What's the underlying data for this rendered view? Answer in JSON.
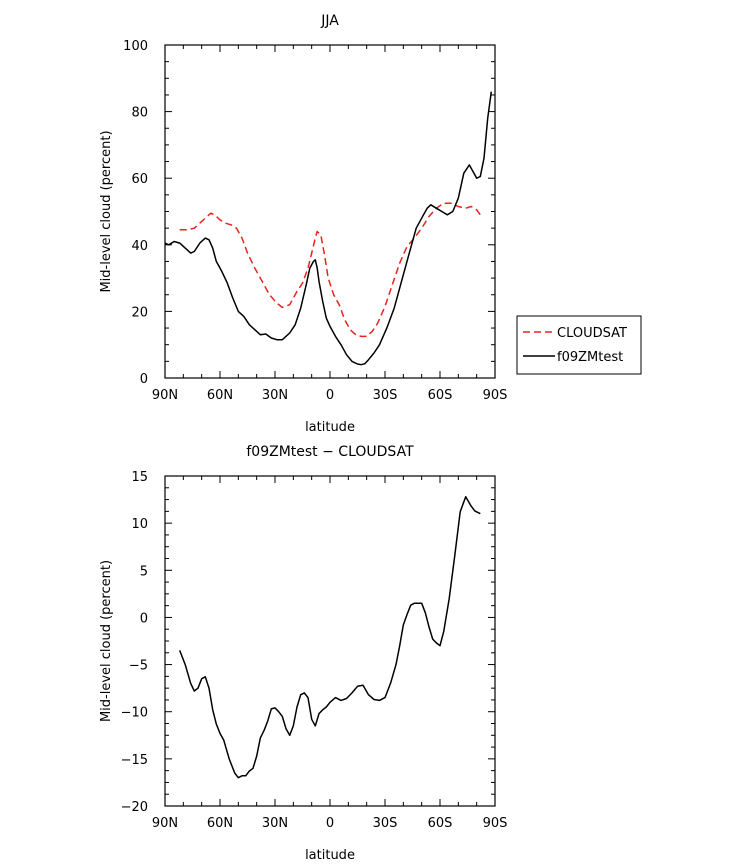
{
  "chart_data": [
    {
      "type": "line",
      "title": "JJA",
      "xlabel": "latitude",
      "ylabel": "Mid-level cloud (percent)",
      "xlim": [
        -90,
        90
      ],
      "ylim": [
        0,
        100
      ],
      "x_ticks": [
        -90,
        -60,
        -30,
        0,
        30,
        60,
        90
      ],
      "x_tick_labels": [
        "90N",
        "60N",
        "30N",
        "0",
        "30S",
        "60S",
        "90S"
      ],
      "y_ticks": [
        0,
        20,
        40,
        60,
        80,
        100
      ],
      "y_tick_labels": [
        "0",
        "20",
        "40",
        "60",
        "80",
        "100"
      ],
      "legend": {
        "placement": "right",
        "entries": [
          "CLOUDSAT",
          "f09ZMtest"
        ]
      },
      "series": [
        {
          "name": "CLOUDSAT",
          "color": "#e8231f",
          "dash": true,
          "x": [
            -82,
            -78,
            -74,
            -71,
            -68,
            -65,
            -63,
            -60,
            -57,
            -54,
            -51,
            -48,
            -45,
            -41,
            -37,
            -33,
            -29,
            -26,
            -22,
            -18,
            -15,
            -12,
            -10,
            -8,
            -7,
            -5,
            -3,
            -1,
            2,
            5,
            8,
            11,
            14,
            17,
            20,
            23,
            26,
            30,
            34,
            38,
            42,
            46,
            50,
            54,
            58,
            62,
            66,
            70,
            74,
            77,
            80,
            82
          ],
          "values": [
            44.5,
            44.5,
            45,
            46.5,
            48,
            49.5,
            49,
            47.5,
            46.5,
            46,
            45,
            42,
            37.5,
            33,
            29,
            25,
            22.5,
            21.2,
            22,
            26,
            28.5,
            33,
            37.5,
            42,
            44,
            43,
            37,
            30,
            25,
            22,
            17.5,
            14.5,
            13,
            12.5,
            12.5,
            14,
            16.5,
            21.5,
            28,
            34.5,
            39.5,
            42,
            45,
            48.5,
            51,
            52.5,
            52.5,
            51.5,
            51,
            51.5,
            50.5,
            49
          ]
        },
        {
          "name": "f09ZMtest",
          "color": "#000000",
          "dash": false,
          "x": [
            -90,
            -88,
            -85,
            -82,
            -79,
            -76,
            -74,
            -71,
            -68,
            -66,
            -64,
            -62,
            -59,
            -56,
            -53,
            -50,
            -47,
            -44,
            -41,
            -38,
            -35,
            -32,
            -29,
            -26,
            -22,
            -19,
            -16,
            -13,
            -11,
            -9,
            -8,
            -7,
            -6,
            -4,
            -2,
            0,
            3,
            6,
            9,
            12,
            15,
            17,
            19,
            21,
            24,
            27,
            31,
            35,
            39,
            43,
            47,
            51,
            53,
            55,
            58,
            61,
            64,
            67,
            70,
            73,
            76,
            78,
            80,
            82,
            84,
            86,
            88
          ],
          "values": [
            40.5,
            40,
            41,
            40.5,
            39,
            37.5,
            38,
            40.5,
            42,
            41.5,
            39,
            35,
            32,
            28.5,
            24,
            20,
            18.5,
            16,
            14.5,
            13,
            13.2,
            12,
            11.5,
            11.5,
            13.5,
            16,
            21,
            28,
            33,
            35,
            35.5,
            33,
            29,
            23,
            18,
            15.5,
            12.5,
            10,
            7,
            5,
            4.2,
            4,
            4.3,
            5.5,
            7.5,
            10,
            15,
            21,
            29,
            37,
            45,
            49,
            51,
            52,
            51,
            50,
            49,
            50,
            54,
            61.5,
            64,
            62,
            60,
            60.5,
            66,
            78,
            86
          ]
        }
      ]
    },
    {
      "type": "line",
      "title": "f09ZMtest  −  CLOUDSAT",
      "xlabel": "latitude",
      "ylabel": "Mid-level cloud (percent)",
      "xlim": [
        -90,
        90
      ],
      "ylim": [
        -20,
        15
      ],
      "x_ticks": [
        -90,
        -60,
        -30,
        0,
        30,
        60,
        90
      ],
      "x_tick_labels": [
        "90N",
        "60N",
        "30N",
        "0",
        "30S",
        "60S",
        "90S"
      ],
      "y_ticks": [
        -20,
        -15,
        -10,
        -5,
        0,
        5,
        10,
        15
      ],
      "y_tick_labels": [
        "−20",
        "−15",
        "−10",
        "−5",
        "0",
        "5",
        "10",
        "15"
      ],
      "series": [
        {
          "color": "#000000",
          "dash": false,
          "x": [
            -82,
            -79,
            -76,
            -74,
            -72,
            -70,
            -68,
            -66,
            -64,
            -62,
            -60,
            -58,
            -55,
            -52,
            -50,
            -48,
            -46,
            -44,
            -42,
            -40,
            -38,
            -36,
            -34,
            -32,
            -30,
            -28,
            -26,
            -24,
            -22,
            -20,
            -18,
            -16,
            -14,
            -12,
            -10,
            -8,
            -6,
            -4,
            -2,
            0,
            3,
            6,
            9,
            12,
            15,
            18,
            21,
            24,
            27,
            30,
            33,
            36,
            38,
            40,
            42,
            44,
            46,
            48,
            50,
            52,
            54,
            56,
            58,
            60,
            62,
            65,
            68,
            71,
            74,
            77,
            79,
            82
          ],
          "values": [
            -3.5,
            -5,
            -7,
            -7.8,
            -7.5,
            -6.5,
            -6.3,
            -7.5,
            -9.8,
            -11.3,
            -12.3,
            -13,
            -15,
            -16.5,
            -17,
            -16.8,
            -16.8,
            -16.3,
            -16,
            -14.7,
            -12.8,
            -12,
            -11,
            -9.7,
            -9.6,
            -10,
            -10.5,
            -11.8,
            -12.5,
            -11.5,
            -9.5,
            -8.2,
            -8,
            -8.5,
            -10.8,
            -11.5,
            -10.2,
            -9.8,
            -9.5,
            -9,
            -8.5,
            -8.8,
            -8.6,
            -8,
            -7.3,
            -7.2,
            -8.2,
            -8.7,
            -8.8,
            -8.5,
            -7,
            -5,
            -3,
            -0.8,
            0.3,
            1.3,
            1.5,
            1.5,
            1.5,
            0.5,
            -1,
            -2.3,
            -2.7,
            -3,
            -1.5,
            2,
            6.5,
            11.2,
            12.8,
            11.8,
            11.3,
            11
          ]
        }
      ]
    }
  ]
}
